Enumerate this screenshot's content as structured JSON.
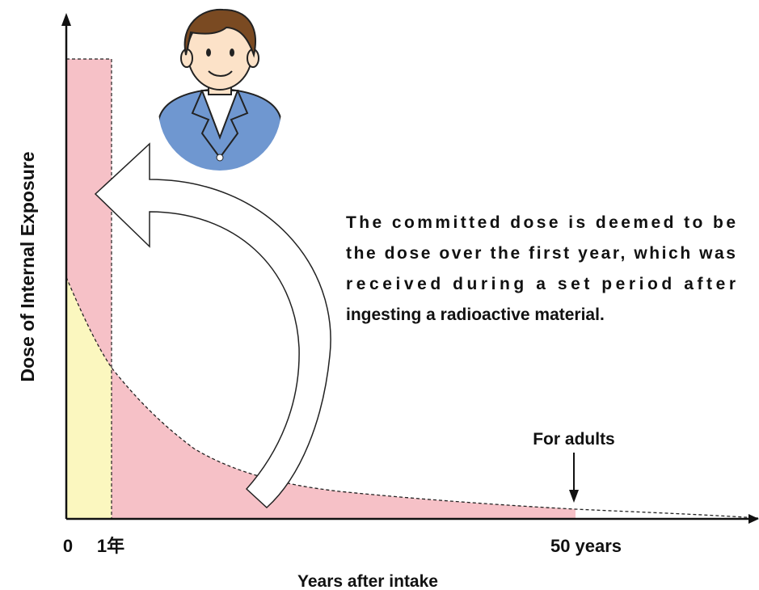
{
  "axes": {
    "y_label": "Dose of Internal Exposure",
    "x_label": "Years after intake",
    "x_tick_labels": [
      "0",
      "1年",
      "50 years"
    ]
  },
  "annotation": "For adults",
  "description": [
    "The committed dose is deemed to be",
    "the dose over the first year, which was",
    "received during a set period after",
    "ingesting a radioactive material."
  ]
}
